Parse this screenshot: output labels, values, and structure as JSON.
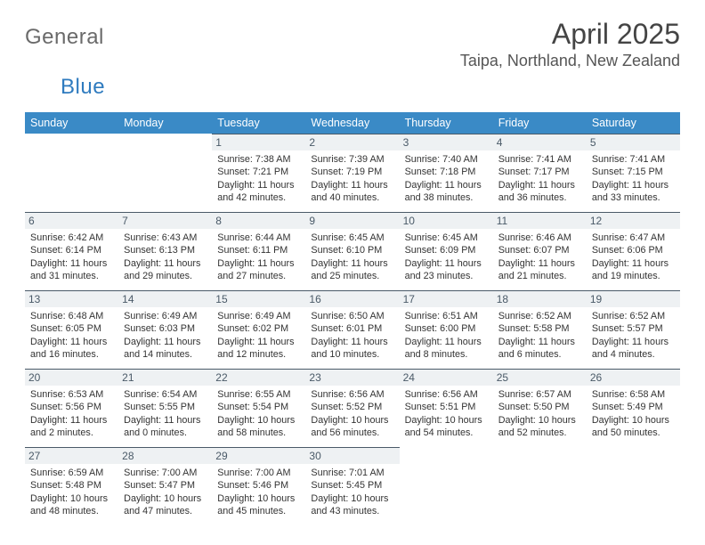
{
  "logo": {
    "text_a": "General",
    "text_b": "Blue",
    "brand_color": "#2f7bbf",
    "gray": "#6a6a6a"
  },
  "title": {
    "month": "April 2025",
    "location": "Taipa, Northland, New Zealand"
  },
  "colors": {
    "header_bg": "#3a8ac6",
    "header_text": "#ffffff",
    "daybar_bg": "#eef1f3",
    "daybar_border": "#4a5a68",
    "daybar_text": "#4a5a68",
    "body_text": "#333333",
    "page_bg": "#ffffff"
  },
  "typography": {
    "month_fontsize": 32,
    "location_fontsize": 18,
    "dow_fontsize": 12.5,
    "daynum_fontsize": 12,
    "body_fontsize": 10.8,
    "logo_fontsize": 24
  },
  "days_of_week": [
    "Sunday",
    "Monday",
    "Tuesday",
    "Wednesday",
    "Thursday",
    "Friday",
    "Saturday"
  ],
  "weeks": [
    [
      null,
      null,
      {
        "n": "1",
        "sunrise": "7:38 AM",
        "sunset": "7:21 PM",
        "daylight": "11 hours and 42 minutes."
      },
      {
        "n": "2",
        "sunrise": "7:39 AM",
        "sunset": "7:19 PM",
        "daylight": "11 hours and 40 minutes."
      },
      {
        "n": "3",
        "sunrise": "7:40 AM",
        "sunset": "7:18 PM",
        "daylight": "11 hours and 38 minutes."
      },
      {
        "n": "4",
        "sunrise": "7:41 AM",
        "sunset": "7:17 PM",
        "daylight": "11 hours and 36 minutes."
      },
      {
        "n": "5",
        "sunrise": "7:41 AM",
        "sunset": "7:15 PM",
        "daylight": "11 hours and 33 minutes."
      }
    ],
    [
      {
        "n": "6",
        "sunrise": "6:42 AM",
        "sunset": "6:14 PM",
        "daylight": "11 hours and 31 minutes."
      },
      {
        "n": "7",
        "sunrise": "6:43 AM",
        "sunset": "6:13 PM",
        "daylight": "11 hours and 29 minutes."
      },
      {
        "n": "8",
        "sunrise": "6:44 AM",
        "sunset": "6:11 PM",
        "daylight": "11 hours and 27 minutes."
      },
      {
        "n": "9",
        "sunrise": "6:45 AM",
        "sunset": "6:10 PM",
        "daylight": "11 hours and 25 minutes."
      },
      {
        "n": "10",
        "sunrise": "6:45 AM",
        "sunset": "6:09 PM",
        "daylight": "11 hours and 23 minutes."
      },
      {
        "n": "11",
        "sunrise": "6:46 AM",
        "sunset": "6:07 PM",
        "daylight": "11 hours and 21 minutes."
      },
      {
        "n": "12",
        "sunrise": "6:47 AM",
        "sunset": "6:06 PM",
        "daylight": "11 hours and 19 minutes."
      }
    ],
    [
      {
        "n": "13",
        "sunrise": "6:48 AM",
        "sunset": "6:05 PM",
        "daylight": "11 hours and 16 minutes."
      },
      {
        "n": "14",
        "sunrise": "6:49 AM",
        "sunset": "6:03 PM",
        "daylight": "11 hours and 14 minutes."
      },
      {
        "n": "15",
        "sunrise": "6:49 AM",
        "sunset": "6:02 PM",
        "daylight": "11 hours and 12 minutes."
      },
      {
        "n": "16",
        "sunrise": "6:50 AM",
        "sunset": "6:01 PM",
        "daylight": "11 hours and 10 minutes."
      },
      {
        "n": "17",
        "sunrise": "6:51 AM",
        "sunset": "6:00 PM",
        "daylight": "11 hours and 8 minutes."
      },
      {
        "n": "18",
        "sunrise": "6:52 AM",
        "sunset": "5:58 PM",
        "daylight": "11 hours and 6 minutes."
      },
      {
        "n": "19",
        "sunrise": "6:52 AM",
        "sunset": "5:57 PM",
        "daylight": "11 hours and 4 minutes."
      }
    ],
    [
      {
        "n": "20",
        "sunrise": "6:53 AM",
        "sunset": "5:56 PM",
        "daylight": "11 hours and 2 minutes."
      },
      {
        "n": "21",
        "sunrise": "6:54 AM",
        "sunset": "5:55 PM",
        "daylight": "11 hours and 0 minutes."
      },
      {
        "n": "22",
        "sunrise": "6:55 AM",
        "sunset": "5:54 PM",
        "daylight": "10 hours and 58 minutes."
      },
      {
        "n": "23",
        "sunrise": "6:56 AM",
        "sunset": "5:52 PM",
        "daylight": "10 hours and 56 minutes."
      },
      {
        "n": "24",
        "sunrise": "6:56 AM",
        "sunset": "5:51 PM",
        "daylight": "10 hours and 54 minutes."
      },
      {
        "n": "25",
        "sunrise": "6:57 AM",
        "sunset": "5:50 PM",
        "daylight": "10 hours and 52 minutes."
      },
      {
        "n": "26",
        "sunrise": "6:58 AM",
        "sunset": "5:49 PM",
        "daylight": "10 hours and 50 minutes."
      }
    ],
    [
      {
        "n": "27",
        "sunrise": "6:59 AM",
        "sunset": "5:48 PM",
        "daylight": "10 hours and 48 minutes."
      },
      {
        "n": "28",
        "sunrise": "7:00 AM",
        "sunset": "5:47 PM",
        "daylight": "10 hours and 47 minutes."
      },
      {
        "n": "29",
        "sunrise": "7:00 AM",
        "sunset": "5:46 PM",
        "daylight": "10 hours and 45 minutes."
      },
      {
        "n": "30",
        "sunrise": "7:01 AM",
        "sunset": "5:45 PM",
        "daylight": "10 hours and 43 minutes."
      },
      null,
      null,
      null
    ]
  ],
  "labels": {
    "sunrise": "Sunrise: ",
    "sunset": "Sunset: ",
    "daylight": "Daylight: "
  }
}
